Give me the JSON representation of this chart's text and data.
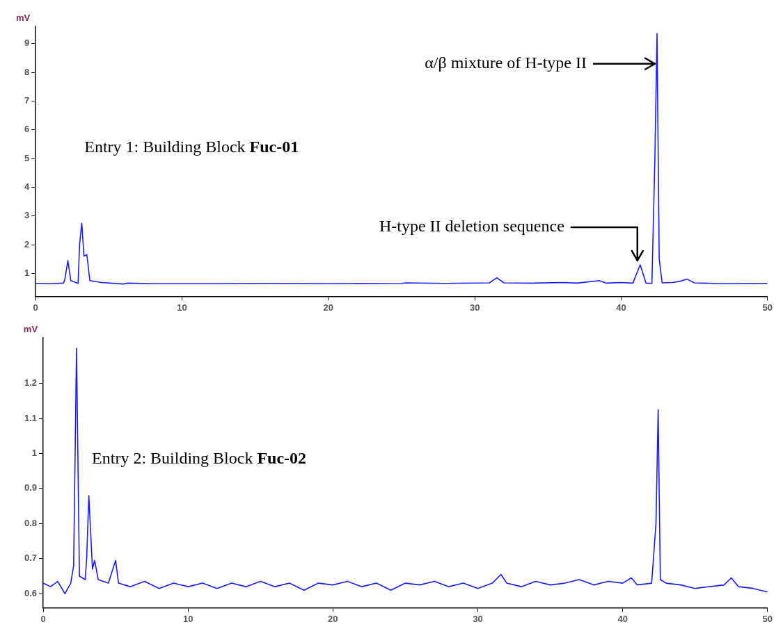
{
  "chart_data": [
    {
      "type": "line",
      "ylabel": "mV",
      "xlim": [
        0,
        50
      ],
      "xticks": [
        0,
        10,
        20,
        30,
        40,
        50
      ],
      "ylim": [
        0.2,
        9.6
      ],
      "yticks": [
        1,
        2,
        3,
        4,
        5,
        6,
        7,
        8,
        9
      ],
      "grid": false,
      "legend": false,
      "marker": "none",
      "line_style": "solid",
      "x": [
        0,
        1,
        1.9,
        2.0,
        2.2,
        2.4,
        2.9,
        3.0,
        3.15,
        3.3,
        3.5,
        3.7,
        4.5,
        6,
        6.3,
        8,
        12,
        16,
        20,
        25,
        25.3,
        28,
        31,
        31.5,
        32,
        34,
        36,
        37,
        38.5,
        39,
        40,
        40.8,
        41.3,
        41.7,
        42.1,
        42.3,
        42.45,
        42.6,
        42.8,
        43.5,
        44,
        44.5,
        45,
        47,
        50
      ],
      "series": [
        {
          "color": "#1a1aff",
          "values": [
            0.65,
            0.64,
            0.66,
            0.8,
            1.45,
            0.75,
            0.65,
            2.0,
            2.75,
            1.6,
            1.65,
            0.75,
            0.68,
            0.63,
            0.66,
            0.64,
            0.64,
            0.65,
            0.64,
            0.65,
            0.67,
            0.65,
            0.67,
            0.85,
            0.67,
            0.66,
            0.68,
            0.66,
            0.75,
            0.66,
            0.68,
            0.66,
            1.3,
            0.66,
            0.65,
            4.9,
            9.35,
            1.5,
            0.67,
            0.68,
            0.72,
            0.8,
            0.67,
            0.64,
            0.65
          ]
        }
      ],
      "annotations": [
        "Entry 1: Building Block Fuc-01",
        {
          "text": "α/β mixture of H-type II",
          "x": 42.45,
          "y": 8.3
        },
        {
          "text": "H-type II deletion sequence",
          "x": 41.3,
          "y": 1.3
        }
      ]
    },
    {
      "type": "line",
      "ylabel": "mV",
      "xlim": [
        0,
        50
      ],
      "xticks": [
        0,
        10,
        20,
        30,
        40,
        50
      ],
      "ylim": [
        0.56,
        1.33
      ],
      "yticks": [
        0.6,
        0.7,
        0.8,
        0.9,
        1,
        1.1,
        1.2
      ],
      "grid": false,
      "legend": false,
      "marker": "none",
      "line_style": "solid",
      "x": [
        0,
        0.5,
        1,
        1.5,
        1.9,
        2.1,
        2.3,
        2.5,
        2.9,
        3.0,
        3.15,
        3.4,
        3.55,
        3.8,
        4.5,
        5.0,
        5.2,
        6,
        7,
        8,
        9,
        10,
        11,
        12,
        13,
        14,
        15,
        16,
        17,
        18,
        19,
        20,
        21,
        22,
        23,
        24,
        25,
        26,
        27,
        28,
        29,
        30,
        31,
        31.6,
        32,
        33,
        34,
        35,
        36,
        37,
        38,
        39,
        40,
        40.6,
        41,
        42,
        42.3,
        42.45,
        42.6,
        43,
        44,
        45,
        46,
        47,
        47.5,
        48,
        49,
        50
      ],
      "series": [
        {
          "color": "#1a1aff",
          "values": [
            0.63,
            0.62,
            0.635,
            0.6,
            0.63,
            0.68,
            1.3,
            0.65,
            0.64,
            0.7,
            0.88,
            0.67,
            0.695,
            0.64,
            0.63,
            0.695,
            0.63,
            0.62,
            0.635,
            0.615,
            0.63,
            0.62,
            0.63,
            0.615,
            0.63,
            0.62,
            0.635,
            0.62,
            0.63,
            0.61,
            0.63,
            0.625,
            0.635,
            0.62,
            0.63,
            0.61,
            0.63,
            0.625,
            0.635,
            0.62,
            0.63,
            0.615,
            0.63,
            0.655,
            0.63,
            0.62,
            0.635,
            0.625,
            0.63,
            0.64,
            0.625,
            0.635,
            0.63,
            0.645,
            0.625,
            0.63,
            0.8,
            1.125,
            0.64,
            0.63,
            0.625,
            0.615,
            0.62,
            0.625,
            0.645,
            0.62,
            0.615,
            0.605
          ]
        }
      ],
      "annotations": [
        "Entry 2: Building Block Fuc-02"
      ]
    }
  ]
}
